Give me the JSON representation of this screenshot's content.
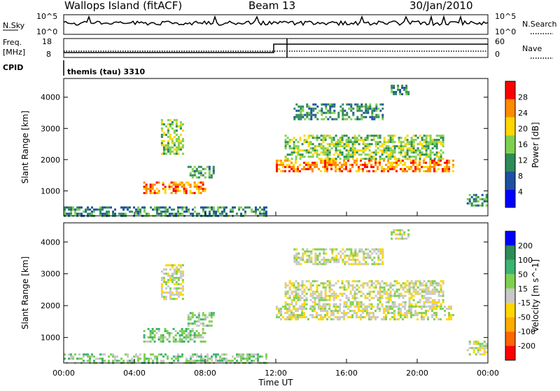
{
  "header": {
    "station": "Wallops Island (fitACF)",
    "beam": "Beam 13",
    "date": "30/Jan/2010"
  },
  "noise_panel": {
    "left_label": "N.Sky",
    "right_label": "N.Search",
    "left_ticks": [
      "10^5",
      "10^0"
    ],
    "right_ticks": [
      "10^5",
      "10^0"
    ]
  },
  "freq_panel": {
    "left_label_1": "Freq.",
    "left_label_2": "[MHz]",
    "right_label": "Nave",
    "left_ticks": [
      "18",
      "8"
    ],
    "right_ticks": [
      "60",
      "0"
    ]
  },
  "cpid": {
    "label": "CPID",
    "value": "themis (tau) 3310"
  },
  "time_axis": {
    "label": "Time UT",
    "ticks": [
      "00:00",
      "04:00",
      "08:00",
      "12:00",
      "16:00",
      "20:00",
      "00:00"
    ]
  },
  "chart_data": [
    {
      "type": "heatmap",
      "title": "",
      "xlabel": "",
      "ylabel": "Slant Range [km]",
      "xlim": [
        0,
        24
      ],
      "ylim": [
        200,
        4600
      ],
      "y_ticks": [
        "1000",
        "2000",
        "3000",
        "4000"
      ],
      "colorbar_label": "Power [dB]",
      "colorbar_ticks": [
        "4",
        "8",
        "12",
        "16",
        "20",
        "24",
        "28"
      ],
      "colors": [
        "#0000ff",
        "#1e4fa0",
        "#2e8b57",
        "#7fd04f",
        "#ffd700",
        "#ff8c00",
        "#ff0000"
      ],
      "regions": [
        {
          "x": [
            5.5,
            6.8
          ],
          "y": [
            2200,
            3300
          ],
          "level": 3
        },
        {
          "x": [
            4.5,
            8.0
          ],
          "y": [
            900,
            1300
          ],
          "level": 5
        },
        {
          "x": [
            7.0,
            8.5
          ],
          "y": [
            1400,
            1800
          ],
          "level": 2
        },
        {
          "x": [
            12.0,
            22.0
          ],
          "y": [
            1600,
            2000
          ],
          "level": 5
        },
        {
          "x": [
            12.5,
            21.5
          ],
          "y": [
            2000,
            2800
          ],
          "level": 3
        },
        {
          "x": [
            13.0,
            18.0
          ],
          "y": [
            3300,
            3800
          ],
          "level": 2
        },
        {
          "x": [
            18.5,
            19.5
          ],
          "y": [
            4100,
            4400
          ],
          "level": 2
        },
        {
          "x": [
            22.8,
            23.9
          ],
          "y": [
            500,
            900
          ],
          "level": 2
        },
        {
          "x": [
            0.0,
            11.5
          ],
          "y": [
            200,
            500
          ],
          "level": 2
        }
      ]
    },
    {
      "type": "heatmap",
      "title": "",
      "xlabel": "Time UT",
      "ylabel": "Slant Range [km]",
      "xlim": [
        0,
        24
      ],
      "ylim": [
        200,
        4600
      ],
      "y_ticks": [
        "1000",
        "2000",
        "3000",
        "4000"
      ],
      "colorbar_label": "Velocity [m s^-1]",
      "colorbar_ticks": [
        "-200",
        "-100",
        "-50",
        "-15",
        "15",
        "50",
        "100",
        "200"
      ],
      "colors": [
        "#ff0000",
        "#ff6600",
        "#ffaa00",
        "#ffd700",
        "#c8c8c8",
        "#7fd04f",
        "#3cb371",
        "#2e8b57",
        "#0000ff"
      ],
      "regions": [
        {
          "x": [
            5.5,
            6.8
          ],
          "y": [
            2200,
            3300
          ],
          "level": 4
        },
        {
          "x": [
            4.5,
            8.0
          ],
          "y": [
            900,
            1300
          ],
          "level": 5
        },
        {
          "x": [
            7.0,
            8.5
          ],
          "y": [
            1400,
            1800
          ],
          "level": 5
        },
        {
          "x": [
            12.0,
            22.0
          ],
          "y": [
            1600,
            2000
          ],
          "level": 4
        },
        {
          "x": [
            12.5,
            21.5
          ],
          "y": [
            2000,
            2800
          ],
          "level": 4
        },
        {
          "x": [
            13.0,
            18.0
          ],
          "y": [
            3300,
            3800
          ],
          "level": 4
        },
        {
          "x": [
            18.5,
            19.5
          ],
          "y": [
            4100,
            4400
          ],
          "level": 4
        },
        {
          "x": [
            22.8,
            23.9
          ],
          "y": [
            500,
            900
          ],
          "level": 4
        },
        {
          "x": [
            0.0,
            11.5
          ],
          "y": [
            200,
            500
          ],
          "level": 5
        }
      ]
    }
  ]
}
